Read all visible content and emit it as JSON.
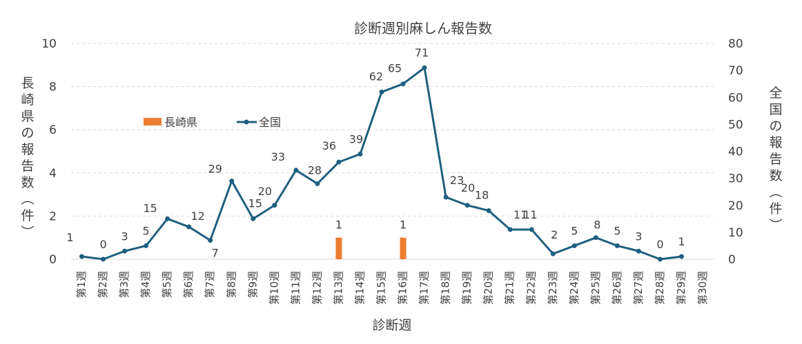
{
  "chart_data": {
    "type": "bar+line",
    "title": "診断週別麻しん報告数",
    "xlabel": "診断週",
    "ylabel_left": "長崎県の報告数（件）",
    "ylabel_right": "全国の報告数（件）",
    "y_left_lim": [
      0,
      10
    ],
    "y_left_ticks": [
      "0",
      "2",
      "4",
      "6",
      "8",
      "10"
    ],
    "y_right_lim": [
      0,
      80
    ],
    "y_right_ticks": [
      "0",
      "10",
      "20",
      "30",
      "40",
      "50",
      "60",
      "70",
      "80"
    ],
    "grid": true,
    "legend_position": "upper-left",
    "categories": [
      "第1週",
      "第2週",
      "第3週",
      "第4週",
      "第5週",
      "第6週",
      "第7週",
      "第8週",
      "第9週",
      "第10週",
      "第11週",
      "第12週",
      "第13週",
      "第14週",
      "第15週",
      "第16週",
      "第17週",
      "第18週",
      "第19週",
      "第20週",
      "第21週",
      "第22週",
      "第23週",
      "第24週",
      "第25週",
      "第26週",
      "第27週",
      "第28週",
      "第29週",
      "第30週"
    ],
    "series": [
      {
        "name": "長崎県",
        "kind": "bar",
        "axis": "left",
        "color": "#ED7D31",
        "values": [
          null,
          null,
          null,
          null,
          null,
          null,
          null,
          null,
          null,
          null,
          null,
          null,
          1,
          null,
          null,
          1,
          null,
          null,
          null,
          null,
          null,
          null,
          null,
          null,
          null,
          null,
          null,
          null,
          null,
          null
        ]
      },
      {
        "name": "全国",
        "kind": "line",
        "axis": "right",
        "color": "#1F5F7F",
        "values": [
          1,
          0,
          3,
          5,
          15,
          12,
          7,
          29,
          15,
          20,
          33,
          28,
          36,
          39,
          62,
          65,
          71,
          23,
          20,
          18,
          11,
          11,
          2,
          5,
          8,
          5,
          3,
          0,
          1,
          null
        ]
      }
    ]
  }
}
